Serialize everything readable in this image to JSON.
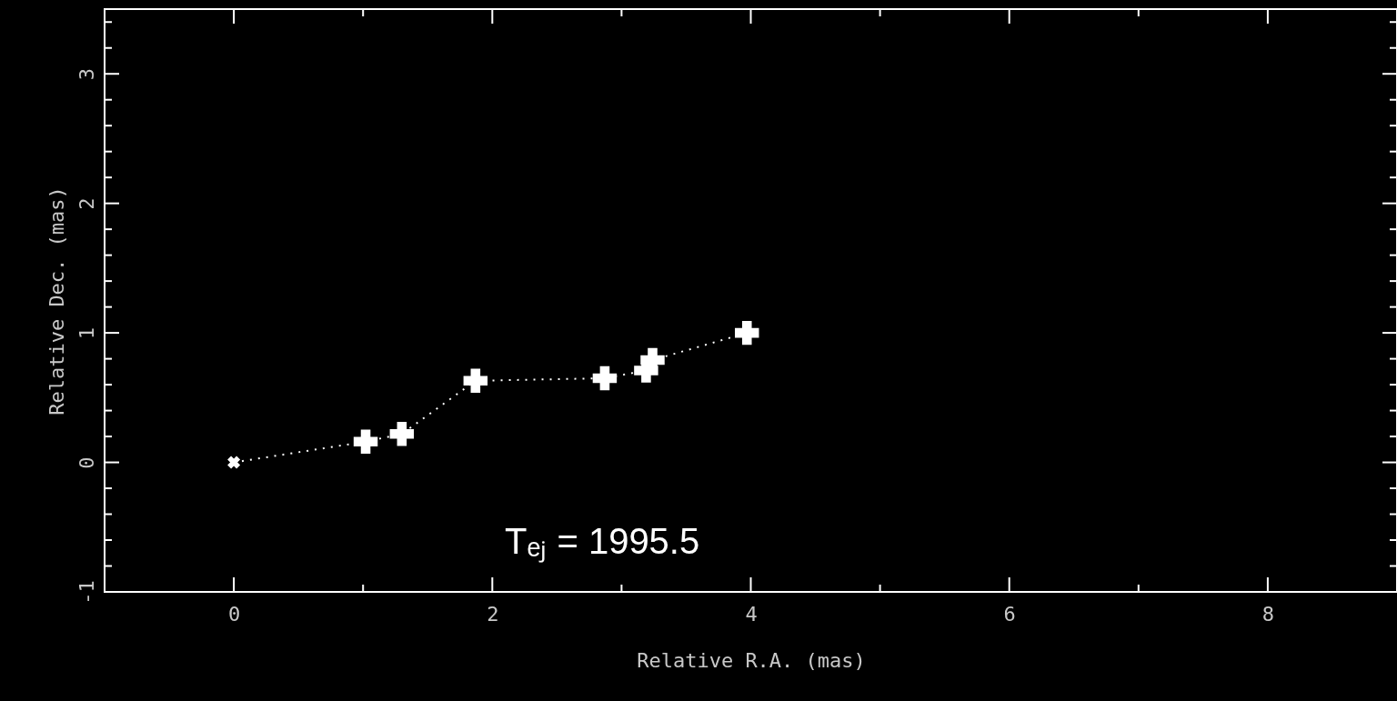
{
  "chart_data": {
    "type": "line",
    "xlabel": "Relative R.A. (mas)",
    "ylabel": "Relative Dec. (mas)",
    "xlim": [
      -1,
      9
    ],
    "ylim": [
      -1,
      3.5
    ],
    "xticks": [
      {
        "value": -1,
        "label": null
      },
      0,
      {
        "value": 1,
        "label": null
      },
      2,
      {
        "value": 3,
        "label": null
      },
      4,
      {
        "value": 5,
        "label": null
      },
      6,
      {
        "value": 7,
        "label": null
      },
      8,
      {
        "value": 9,
        "label": null
      }
    ],
    "yticks": [
      -1,
      {
        "value": -0.8,
        "label": null
      },
      {
        "value": -0.6,
        "label": null
      },
      {
        "value": -0.4,
        "label": null
      },
      {
        "value": -0.2,
        "label": null
      },
      0,
      {
        "value": 0.2,
        "label": null
      },
      {
        "value": 0.4,
        "label": null
      },
      {
        "value": 0.6,
        "label": null
      },
      {
        "value": 0.8,
        "label": null
      },
      1,
      {
        "value": 1.2,
        "label": null
      },
      {
        "value": 1.4,
        "label": null
      },
      {
        "value": 1.6,
        "label": null
      },
      {
        "value": 1.8,
        "label": null
      },
      2,
      {
        "value": 2.2,
        "label": null
      },
      {
        "value": 2.4,
        "label": null
      },
      {
        "value": 2.6,
        "label": null
      },
      {
        "value": 2.8,
        "label": null
      },
      3,
      {
        "value": 3.2,
        "label": null
      },
      {
        "value": 3.4,
        "label": null
      }
    ],
    "grid": false,
    "series": [
      {
        "color": "#ffffff",
        "line_style": "dotted",
        "marker": "none",
        "x": [
          0,
          1.02,
          1.3,
          1.87,
          2.87,
          3.19,
          3.24,
          3.97
        ],
        "values": [
          0,
          0.16,
          0.22,
          0.63,
          0.65,
          0.71,
          0.79,
          1.0
        ]
      },
      {
        "type": "scatter",
        "color": "#ffffff",
        "marker": "x",
        "x": [
          0
        ],
        "values": [
          0
        ]
      },
      {
        "type": "scatter",
        "color": "#ffffff",
        "marker": "cross",
        "x": [
          1.02,
          1.3,
          1.87,
          2.87,
          3.19,
          3.24,
          3.97
        ],
        "values": [
          0.16,
          0.22,
          0.63,
          0.65,
          0.71,
          0.79,
          1.0
        ]
      }
    ],
    "annotations": [
      "Tₑⱼ = 1995.5"
    ]
  }
}
